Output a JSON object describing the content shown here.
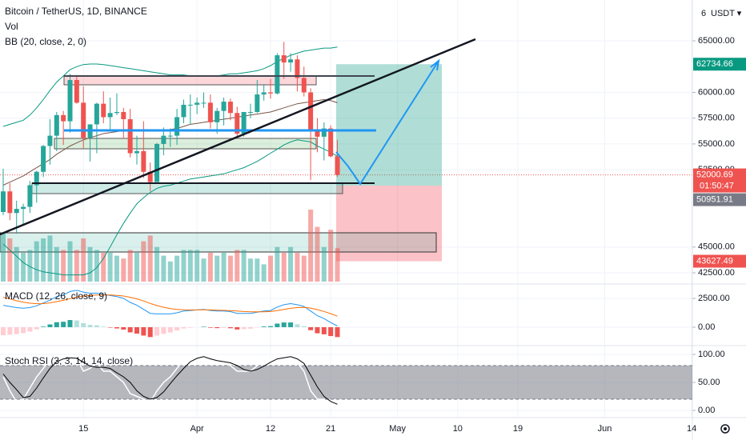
{
  "chart_data": {
    "type": "candlestick",
    "title": "Bitcoin / TetherUS, 1D, BINANCE",
    "volume_label": "Vol",
    "top_axis_text": "6",
    "currency": "USDT ▾",
    "up_color": "#26a69a",
    "down_color": "#ef5350",
    "open": [
      48400,
      50400,
      48300,
      48700,
      48900,
      51000,
      52300,
      54800,
      55800,
      57800,
      57200,
      61200,
      59000,
      55600,
      56900,
      58900,
      57600,
      58000,
      58100,
      57400,
      54100,
      54300,
      52300,
      51300,
      55000,
      55800,
      55800,
      57600,
      58800,
      58800,
      59000,
      59000,
      57100,
      58200,
      59100,
      58000,
      56000,
      58100,
      58100,
      59800,
      60000,
      59900,
      63600,
      62900,
      63200,
      61400,
      60000,
      56200,
      55700,
      56500,
      53800
    ],
    "high": [
      52600,
      51200,
      49500,
      49200,
      51400,
      52400,
      54900,
      57400,
      58100,
      58200,
      61800,
      61600,
      60600,
      56900,
      59000,
      60100,
      59500,
      59900,
      58500,
      58400,
      55800,
      57200,
      53200,
      55100,
      56600,
      56500,
      58400,
      59300,
      59800,
      59500,
      60000,
      59800,
      58500,
      59500,
      59400,
      58600,
      58100,
      58900,
      61200,
      60700,
      61300,
      63800,
      64900,
      63800,
      63600,
      62500,
      60400,
      57500,
      57100,
      56800,
      55400
    ],
    "low": [
      48100,
      47600,
      46300,
      47100,
      48300,
      49300,
      51800,
      53000,
      54300,
      54900,
      56100,
      58900,
      54600,
      53300,
      54100,
      57000,
      56300,
      57800,
      55500,
      53700,
      53000,
      51700,
      50400,
      51300,
      53900,
      54700,
      54900,
      57000,
      56900,
      57900,
      58500,
      56500,
      56000,
      56800,
      57300,
      55500,
      55700,
      57500,
      58000,
      59200,
      59400,
      59800,
      61300,
      62000,
      60100,
      59600,
      51500,
      54200,
      53400,
      53700,
      51800
    ],
    "close": [
      50400,
      48300,
      48700,
      48900,
      51000,
      52300,
      54800,
      55800,
      57800,
      57200,
      61200,
      59000,
      55600,
      56900,
      58900,
      57600,
      58000,
      58100,
      57400,
      54100,
      54300,
      52300,
      51300,
      55000,
      55800,
      55800,
      57600,
      58800,
      58800,
      59000,
      59000,
      57100,
      58200,
      59100,
      58000,
      56000,
      58100,
      58100,
      59800,
      60000,
      59900,
      63600,
      62900,
      63200,
      61400,
      60000,
      56200,
      55700,
      56500,
      53800,
      52000
    ],
    "volume": [
      85,
      75,
      60,
      50,
      55,
      70,
      75,
      80,
      60,
      55,
      70,
      55,
      75,
      60,
      55,
      50,
      50,
      45,
      40,
      55,
      50,
      70,
      80,
      60,
      45,
      35,
      45,
      55,
      55,
      55,
      40,
      50,
      45,
      50,
      45,
      55,
      55,
      40,
      40,
      30,
      45,
      60,
      50,
      60,
      50,
      45,
      125,
      95,
      60,
      90,
      58
    ],
    "bb": {
      "label": "BB (20, close, 2, 0)",
      "upper_color": "#089981",
      "basis_color": "#795548",
      "lower_color": "#089981",
      "upper": [
        56700,
        56900,
        57100,
        57300,
        57800,
        58500,
        59300,
        60200,
        61000,
        61600,
        62200,
        62500,
        62700,
        62750,
        62750,
        62700,
        62600,
        62500,
        62400,
        62300,
        62200,
        62100,
        62000,
        61900,
        61800,
        61700,
        61700,
        61700,
        61600,
        61600,
        61600,
        61600,
        61600,
        61700,
        61800,
        61800,
        61900,
        62000,
        62100,
        62300,
        62600,
        63000,
        63300,
        63600,
        63800,
        64000,
        64100,
        64200,
        64300,
        64300,
        64400
      ],
      "basis": [
        51000,
        51300,
        51600,
        51900,
        52300,
        52700,
        53100,
        53500,
        54000,
        54400,
        54800,
        55100,
        55400,
        55600,
        55800,
        56000,
        56100,
        56200,
        56300,
        56300,
        56300,
        56300,
        56300,
        56300,
        56300,
        56400,
        56500,
        56700,
        56900,
        57000,
        57100,
        57200,
        57300,
        57400,
        57500,
        57600,
        57700,
        57800,
        57900,
        58000,
        58100,
        58300,
        58500,
        58700,
        58900,
        59000,
        59100,
        59200,
        59300,
        59200,
        59000
      ],
      "lower": [
        45300,
        44700,
        44100,
        43500,
        43100,
        42800,
        42600,
        42500,
        42400,
        42300,
        42300,
        42300,
        42300,
        42500,
        43000,
        43900,
        45000,
        46200,
        47300,
        48300,
        49200,
        49800,
        50300,
        50700,
        50900,
        51000,
        51200,
        51400,
        51600,
        51700,
        51800,
        51900,
        52000,
        52100,
        52300,
        52500,
        52700,
        53000,
        53300,
        53700,
        54100,
        54500,
        54900,
        55200,
        55400,
        55300,
        55200,
        54800,
        54500,
        54200,
        53800
      ]
    },
    "xlim": [
      -0.479,
      103.11
    ],
    "xticks": [
      {
        "value": 12,
        "label": "15"
      },
      {
        "value": 29,
        "label": "Apr"
      },
      {
        "value": 40,
        "label": "12"
      },
      {
        "value": 49,
        "label": "21"
      },
      {
        "value": 59,
        "label": "May"
      },
      {
        "value": 68,
        "label": "10"
      },
      {
        "value": 77,
        "label": "19"
      },
      {
        "value": 90,
        "label": "Jun"
      },
      {
        "value": 103,
        "label": "14"
      }
    ],
    "ylim": [
      41650,
      68960
    ],
    "yticks": [
      {
        "value": 65000,
        "label": "65000.00"
      },
      {
        "value": 60000,
        "label": "60000.00"
      },
      {
        "value": 57500,
        "label": "57500.00"
      },
      {
        "value": 55000,
        "label": "55000.00"
      },
      {
        "value": 52500,
        "label": "52500.00"
      },
      {
        "value": 45000,
        "label": "45000.00"
      },
      {
        "value": 42500,
        "label": "42500.00"
      }
    ],
    "grid": true,
    "position": {
      "target": 62734.66,
      "entry": 50951.91,
      "stop": 43627.49
    },
    "price_tags": [
      {
        "value": 62734.66,
        "color": "#089981"
      },
      {
        "value": 52000.69,
        "color": "#ef5350",
        "countdown": "01:50:47"
      },
      {
        "value": 50951.91,
        "color": "#787b86"
      },
      {
        "value": 43627.49,
        "color": "#ef5350"
      }
    ],
    "macd": {
      "label": "MACD (12, 26, close, 9)",
      "macd_color": "#2196f3",
      "signal_color": "#ff6d00",
      "ylim": [
        -1600,
        3750
      ],
      "yticks": [
        {
          "value": 2500,
          "label": "2500.00"
        },
        {
          "value": 0,
          "label": "0.00"
        }
      ],
      "macd": [
        1900,
        1800,
        1700,
        1650,
        1700,
        1850,
        2100,
        2350,
        2650,
        2800,
        3100,
        3200,
        3050,
        2950,
        2950,
        2850,
        2750,
        2650,
        2500,
        2150,
        1900,
        1550,
        1200,
        1150,
        1150,
        1150,
        1250,
        1400,
        1450,
        1500,
        1550,
        1450,
        1400,
        1400,
        1350,
        1200,
        1200,
        1200,
        1300,
        1400,
        1450,
        1750,
        1950,
        2050,
        1950,
        1800,
        1400,
        1000,
        750,
        400,
        100
      ],
      "signal": [
        2600,
        2450,
        2300,
        2170,
        2080,
        2040,
        2050,
        2110,
        2220,
        2330,
        2480,
        2620,
        2700,
        2750,
        2790,
        2800,
        2790,
        2760,
        2710,
        2600,
        2460,
        2280,
        2060,
        1880,
        1730,
        1610,
        1540,
        1510,
        1500,
        1500,
        1510,
        1500,
        1480,
        1460,
        1440,
        1400,
        1360,
        1330,
        1330,
        1340,
        1360,
        1440,
        1540,
        1640,
        1700,
        1720,
        1660,
        1530,
        1370,
        1170,
        960
      ],
      "histogram": [
        -700,
        -650,
        -600,
        -520,
        -380,
        -190,
        50,
        240,
        430,
        470,
        620,
        580,
        350,
        200,
        160,
        50,
        -40,
        -110,
        -210,
        -450,
        -560,
        -730,
        -860,
        -730,
        -580,
        -460,
        -290,
        -110,
        -50,
        0,
        40,
        -50,
        -80,
        -60,
        -90,
        -200,
        -160,
        -130,
        -30,
        60,
        90,
        310,
        410,
        410,
        250,
        80,
        -260,
        -530,
        -620,
        -770,
        -860
      ]
    },
    "stoch": {
      "label": "Stoch RSI (3, 3, 14, 14, close)",
      "k_color": "#ffffff",
      "d_color": "#000000",
      "ylim": [
        -12.9,
        111.4
      ],
      "yticks": [
        {
          "value": 100,
          "label": "100.00"
        },
        {
          "value": 50,
          "label": "50.00"
        },
        {
          "value": 0,
          "label": "0.00"
        }
      ],
      "bands": [
        80,
        20
      ],
      "k": [
        60,
        35,
        15,
        20,
        40,
        60,
        75,
        90,
        95,
        90,
        97,
        92,
        70,
        75,
        85,
        70,
        70,
        60,
        50,
        30,
        25,
        20,
        15,
        35,
        50,
        60,
        75,
        90,
        95,
        95,
        97,
        85,
        85,
        90,
        80,
        70,
        70,
        70,
        80,
        88,
        90,
        97,
        95,
        96,
        85,
        70,
        35,
        20,
        20,
        8,
        5
      ],
      "d": [
        65,
        50,
        37,
        23,
        25,
        40,
        58,
        75,
        87,
        92,
        94,
        93,
        86,
        79,
        77,
        77,
        75,
        67,
        60,
        50,
        35,
        25,
        20,
        23,
        33,
        48,
        62,
        75,
        87,
        93,
        96,
        92,
        89,
        87,
        85,
        80,
        73,
        70,
        73,
        79,
        86,
        92,
        94,
        96,
        92,
        84,
        63,
        42,
        25,
        16,
        11
      ]
    }
  }
}
